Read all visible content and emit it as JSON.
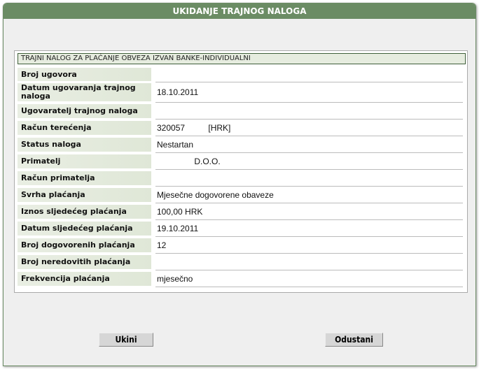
{
  "window": {
    "title": "UKIDANJE TRAJNOG NALOGA"
  },
  "section": {
    "title": "TRAJNI NALOG ZA PLAĆANJE OBVEZA IZVAN BANKE-INDIVIDUALNI"
  },
  "rows": [
    {
      "label": "Broj ugovora",
      "value": ""
    },
    {
      "label": "Datum ugovaranja trajnog naloga",
      "value": "18.10.2011"
    },
    {
      "label": "Ugovaratelj trajnog naloga",
      "value": ""
    },
    {
      "label": "Račun terećenja",
      "value": "320057          [HRK]"
    },
    {
      "label": "Status naloga",
      "value": "Nestartan"
    },
    {
      "label": "Primatelj",
      "value": "                D.O.O."
    },
    {
      "label": "Račun primatelja",
      "value": ""
    },
    {
      "label": "Svrha plaćanja",
      "value": "Mjesečne dogovorene obaveze"
    },
    {
      "label": "Iznos sljedećeg plaćanja",
      "value": "100,00 HRK"
    },
    {
      "label": "Datum sljedećeg plaćanja",
      "value": "19.10.2011"
    },
    {
      "label": "Broj dogovorenih plaćanja",
      "value": "12"
    },
    {
      "label": "Broj neredovitih plaćanja",
      "value": ""
    },
    {
      "label": "Frekvencija plaćanja",
      "value": "mjesečno"
    }
  ],
  "buttons": {
    "cancel_order": "Ukini",
    "dismiss": "Odustani"
  }
}
